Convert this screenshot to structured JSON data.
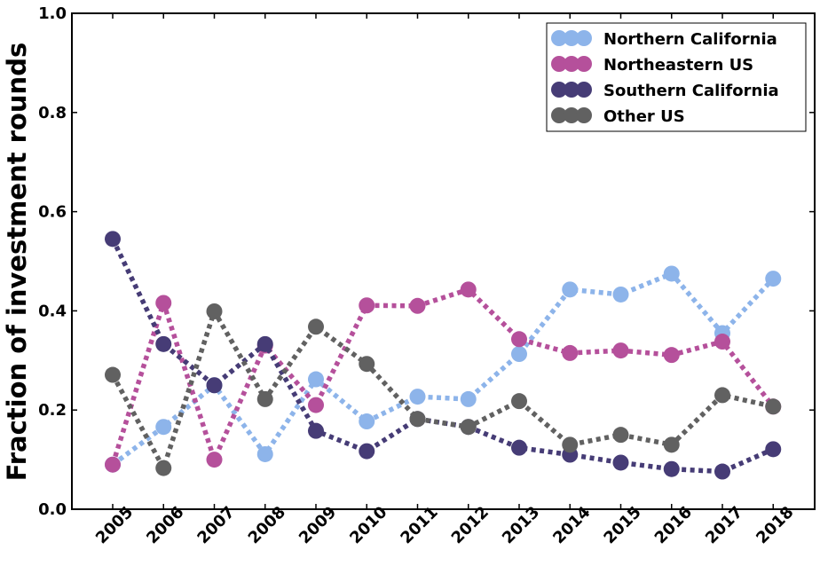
{
  "chart_data": {
    "type": "line",
    "title": "",
    "xlabel": "",
    "ylabel": "Fraction of investment rounds",
    "ylim": [
      0.0,
      1.0
    ],
    "yticks": [
      "0.0",
      "0.2",
      "0.4",
      "0.6",
      "0.8",
      "1.0"
    ],
    "yticks_values": [
      0.0,
      0.2,
      0.4,
      0.6,
      0.8,
      1.0
    ],
    "x": [
      "2005",
      "2006",
      "2007",
      "2008",
      "2009",
      "2010",
      "2011",
      "2012",
      "2013",
      "2014",
      "2015",
      "2016",
      "2017",
      "2018"
    ],
    "grid": false,
    "legend_position": "top-right",
    "series": [
      {
        "name": "Northern California",
        "color": "#8db4ea",
        "values": [
          0.09,
          0.166,
          0.25,
          0.111,
          0.262,
          0.177,
          0.227,
          0.222,
          0.313,
          0.443,
          0.433,
          0.475,
          0.355,
          0.465
        ]
      },
      {
        "name": "Northeastern US",
        "color": "#b5509b",
        "values": [
          0.09,
          0.416,
          0.1,
          0.33,
          0.21,
          0.411,
          0.41,
          0.443,
          0.343,
          0.315,
          0.32,
          0.311,
          0.338,
          0.207
        ]
      },
      {
        "name": "Southern California",
        "color": "#463c76",
        "values": [
          0.545,
          0.333,
          0.25,
          0.333,
          0.158,
          0.117,
          0.182,
          0.166,
          0.124,
          0.11,
          0.094,
          0.081,
          0.076,
          0.121
        ]
      },
      {
        "name": "Other US",
        "color": "#616161",
        "values": [
          0.271,
          0.083,
          0.399,
          0.222,
          0.368,
          0.293,
          0.182,
          0.166,
          0.218,
          0.13,
          0.15,
          0.13,
          0.23,
          0.207
        ]
      }
    ]
  }
}
